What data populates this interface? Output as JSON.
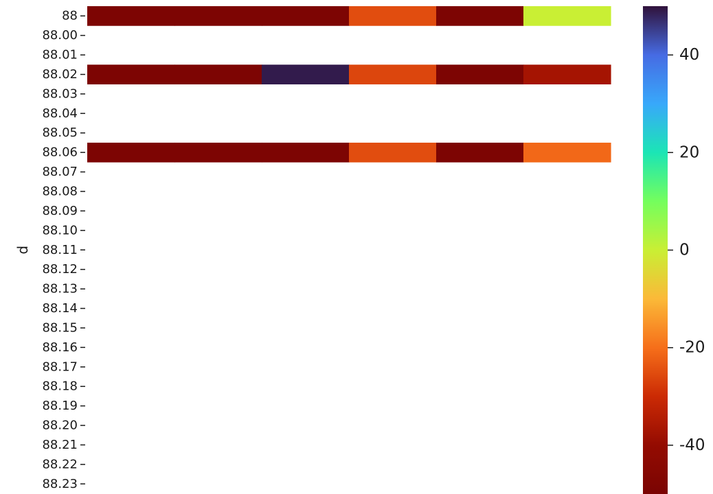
{
  "chart_data": {
    "type": "heatmap",
    "title": "",
    "xlabel": "",
    "ylabel": "d",
    "y_categories": [
      "88",
      "88.00",
      "88.01",
      "88.02",
      "88.03",
      "88.04",
      "88.05",
      "88.06",
      "88.07",
      "88.08",
      "88.09",
      "88.10",
      "88.11",
      "88.12",
      "88.13",
      "88.14",
      "88.15",
      "88.16",
      "88.17",
      "88.18",
      "88.19",
      "88.20",
      "88.21",
      "88.22",
      "88.23"
    ],
    "x_columns": 6,
    "values": [
      [
        -49,
        -49,
        -49,
        -25,
        -49,
        0
      ],
      [
        null,
        null,
        null,
        null,
        null,
        null
      ],
      [
        null,
        null,
        null,
        null,
        null,
        null
      ],
      [
        -49,
        -49,
        49,
        -26,
        -49,
        -37
      ],
      [
        null,
        null,
        null,
        null,
        null,
        null
      ],
      [
        null,
        null,
        null,
        null,
        null,
        null
      ],
      [
        null,
        null,
        null,
        null,
        null,
        null
      ],
      [
        -49,
        -49,
        -49,
        -25,
        -49,
        -21
      ],
      [
        null,
        null,
        null,
        null,
        null,
        null
      ],
      [
        null,
        null,
        null,
        null,
        null,
        null
      ],
      [
        null,
        null,
        null,
        null,
        null,
        null
      ],
      [
        null,
        null,
        null,
        null,
        null,
        null
      ],
      [
        null,
        null,
        null,
        null,
        null,
        null
      ],
      [
        null,
        null,
        null,
        null,
        null,
        null
      ],
      [
        null,
        null,
        null,
        null,
        null,
        null
      ],
      [
        null,
        null,
        null,
        null,
        null,
        null
      ],
      [
        null,
        null,
        null,
        null,
        null,
        null
      ],
      [
        null,
        null,
        null,
        null,
        null,
        null
      ],
      [
        null,
        null,
        null,
        null,
        null,
        null
      ],
      [
        null,
        null,
        null,
        null,
        null,
        null
      ],
      [
        null,
        null,
        null,
        null,
        null,
        null
      ],
      [
        null,
        null,
        null,
        null,
        null,
        null
      ],
      [
        null,
        null,
        null,
        null,
        null,
        null
      ],
      [
        null,
        null,
        null,
        null,
        null,
        null
      ],
      [
        null,
        null,
        null,
        null,
        null,
        null
      ]
    ],
    "colorbar": {
      "colormap": "turbo",
      "vmin": -50,
      "vmax": 50,
      "ticks": [
        40,
        20,
        0,
        -20,
        -40
      ],
      "tick_labels": [
        "40",
        "20",
        "0",
        "-20",
        "-40"
      ]
    },
    "grid": false,
    "legend": "colorbar-right"
  }
}
